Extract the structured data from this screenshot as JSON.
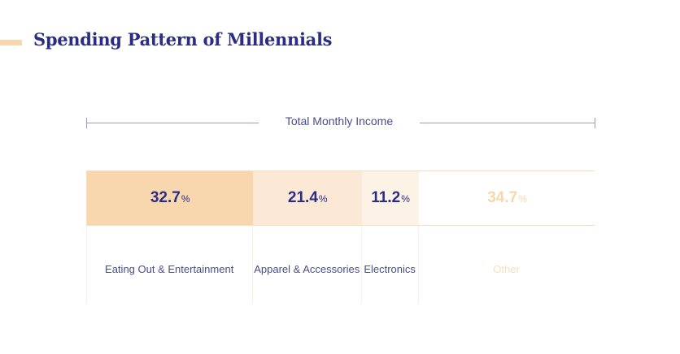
{
  "title": "Spending Pattern of Millennials",
  "accent_color": "#f8d7ae",
  "income_label": "Total Monthly Income",
  "pct_symbol": "%",
  "chart_data": {
    "type": "bar",
    "orientation": "horizontal-stacked",
    "title": "Spending Pattern of Millennials",
    "total_label": "Total Monthly Income",
    "categories": [
      "Eating Out & Entertainment",
      "Apparel & Accessories",
      "Electronics",
      "Other"
    ],
    "values": [
      32.7,
      21.4,
      11.2,
      34.7
    ],
    "value_labels": [
      "32.7",
      "21.4",
      "11.2",
      "34.7"
    ],
    "unit": "%",
    "colors": [
      "#f8d7ae",
      "#fbe9d5",
      "#fdf2e6",
      "#ffffff"
    ],
    "text_colors": [
      "#2b2d85",
      "#2b2d85",
      "#2b2d85",
      "#f8d7ae"
    ]
  }
}
